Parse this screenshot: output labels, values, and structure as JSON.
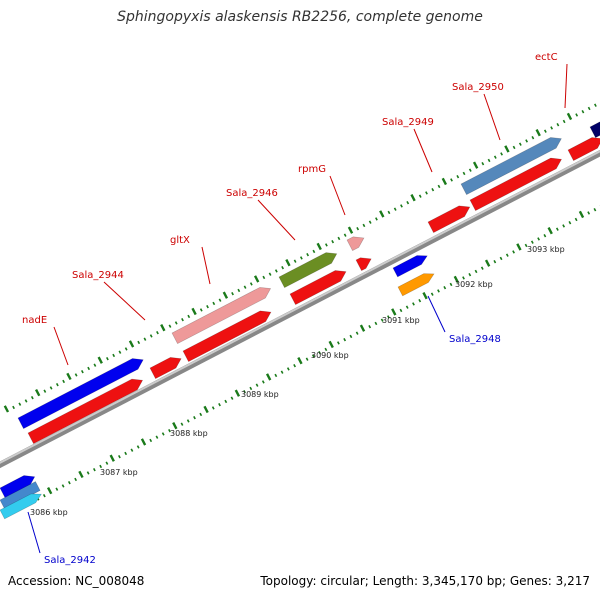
{
  "title": "Sphingopyxis alaskensis RB2256, complete genome",
  "footer": {
    "accession": "Accession: NC_008048",
    "summary": "Topology: circular; Length: 3,345,170 bp; Genes: 3,217"
  },
  "colors": {
    "strand_label_forward": "#cc0000",
    "strand_label_reverse": "#0000cc",
    "backbone": "#999999",
    "minor_tick": "#1a6b1a"
  },
  "scale_labels": [
    "3086 kbp",
    "3087 kbp",
    "3088 kbp",
    "3089 kbp",
    "3090 kbp",
    "3091 kbp",
    "3092 kbp",
    "3093 kbp"
  ],
  "genes": [
    {
      "label": "nadE",
      "color": "#0000ee"
    },
    {
      "label": "Sala_2944",
      "color": "#ee0000"
    },
    {
      "label": "gltX",
      "color": "#ee9999"
    },
    {
      "label": "Sala_2946",
      "color": "#ee0000"
    },
    {
      "label": "rpmG",
      "color": "#ee9999"
    },
    {
      "label": "Sala_2949",
      "color": "#ee0000"
    },
    {
      "label": "Sala_2950",
      "color": "#5588bb"
    },
    {
      "label": "ectC",
      "color": "#000066"
    },
    {
      "label": "Sala_2948",
      "color": "#ff9900"
    },
    {
      "label": "Sala_2942",
      "color": "#33ccee"
    }
  ]
}
